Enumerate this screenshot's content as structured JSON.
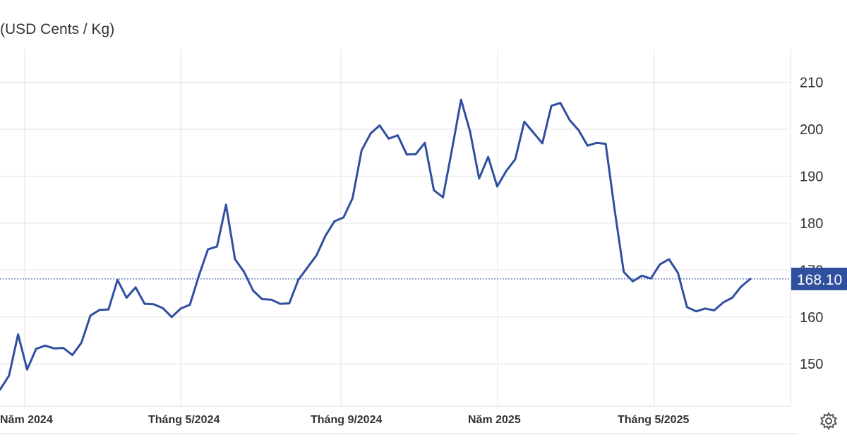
{
  "chart_data": {
    "type": "line",
    "unit_label": "(USD Cents / Kg)",
    "x_ticks": [
      "Năm 2024",
      "Tháng 5/2024",
      "Tháng 9/2024",
      "Năm 2025",
      "Tháng 5/2025"
    ],
    "y_ticks": [
      150,
      160,
      170,
      180,
      190,
      200,
      210
    ],
    "ylim": [
      141,
      217
    ],
    "last_value_label": "168.10",
    "last_value": 168.1,
    "grid": true,
    "line_color": "#2f4f9f",
    "series": [
      {
        "values": [
          144.5,
          147.5,
          156.3,
          148.8,
          153.2,
          153.9,
          153.3,
          153.4,
          151.9,
          154.5,
          160.3,
          161.5,
          161.6,
          167.9,
          164.1,
          166.3,
          162.8,
          162.7,
          161.9,
          160,
          161.8,
          162.6,
          168.8,
          174.4,
          175,
          183.9,
          172.3,
          169.6,
          165.6,
          163.8,
          163.7,
          162.8,
          162.9,
          167.9,
          170.5,
          173.1,
          177.3,
          180.4,
          181.2,
          185.3,
          195.5,
          199.1,
          200.8,
          198,
          198.7,
          194.6,
          194.7,
          197.1,
          187,
          185.5,
          195.7,
          206.3,
          199.5,
          189.5,
          194.1,
          187.8,
          191.1,
          193.6,
          201.6,
          199.3,
          197,
          205,
          205.6,
          202,
          199.8,
          196.5,
          197.1,
          196.9,
          182.7,
          169.6,
          167.6,
          168.8,
          168.2,
          171.2,
          172.3,
          169.4,
          162.1,
          161.2,
          161.8,
          161.4,
          163.1,
          164.1,
          166.5,
          168.1
        ]
      }
    ]
  }
}
